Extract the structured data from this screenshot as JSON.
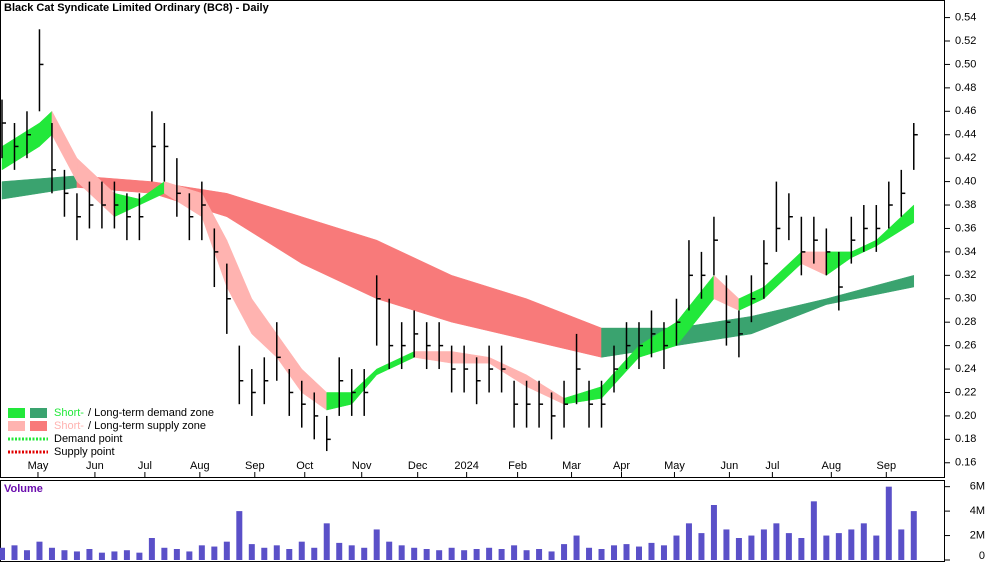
{
  "chart_data": {
    "type": "ohlc",
    "title": "Black Cat Syndicate Limited Ordinary (BC8) - Daily",
    "xlim": [
      -0.16,
      75.5
    ],
    "xticks": [
      {
        "value": 2.88,
        "label": "May"
      },
      {
        "value": 7.44,
        "label": "Jun"
      },
      {
        "value": 11.44,
        "label": "Jul"
      },
      {
        "value": 15.84,
        "label": "Aug"
      },
      {
        "value": 20.24,
        "label": "Sep"
      },
      {
        "value": 24.24,
        "label": "Oct"
      },
      {
        "value": 28.8,
        "label": "Nov"
      },
      {
        "value": 33.28,
        "label": "Dec"
      },
      {
        "value": 37.2,
        "label": "2024"
      },
      {
        "value": 41.28,
        "label": "Feb"
      },
      {
        "value": 45.6,
        "label": "Mar"
      },
      {
        "value": 49.6,
        "label": "Apr"
      },
      {
        "value": 53.84,
        "label": "May"
      },
      {
        "value": 58.24,
        "label": "Jun"
      },
      {
        "value": 61.68,
        "label": "Jul"
      },
      {
        "value": 66.4,
        "label": "Aug"
      },
      {
        "value": 70.8,
        "label": "Sep"
      }
    ],
    "ylim": [
      0.147,
      0.555
    ],
    "yticks": [
      0.16,
      0.18,
      {
        "value": 0.2,
        "label": "0.20"
      },
      0.22,
      0.24,
      0.26,
      0.28,
      {
        "value": 0.3,
        "label": "0.30"
      },
      0.32,
      0.34,
      0.36,
      0.38,
      {
        "value": 0.4,
        "label": "0.40"
      },
      0.42,
      0.44,
      0.46,
      0.48,
      {
        "value": 0.5,
        "label": "0.50"
      },
      0.52,
      0.54
    ],
    "color": "#000000",
    "close": [
      0.45,
      0.43,
      0.44,
      0.5,
      0.41,
      0.39,
      0.37,
      0.38,
      0.38,
      0.38,
      0.37,
      0.37,
      0.43,
      0.43,
      0.39,
      0.37,
      0.38,
      0.34,
      0.3,
      0.23,
      0.22,
      0.23,
      0.25,
      0.22,
      0.21,
      0.2,
      0.18,
      0.23,
      0.22,
      0.22,
      0.3,
      0.26,
      0.26,
      0.27,
      0.26,
      0.26,
      0.24,
      0.24,
      0.23,
      0.24,
      0.24,
      0.21,
      0.21,
      0.21,
      0.2,
      0.21,
      0.24,
      0.21,
      0.21,
      0.24,
      0.26,
      0.26,
      0.27,
      0.26,
      0.28,
      0.32,
      0.32,
      0.35,
      0.28,
      0.27,
      0.3,
      0.33,
      0.36,
      0.37,
      0.34,
      0.35,
      0.34,
      0.31,
      0.35,
      0.36,
      0.36,
      0.38,
      0.39,
      0.44
    ],
    "high": [
      0.47,
      0.45,
      0.46,
      0.53,
      0.45,
      0.41,
      0.39,
      0.4,
      0.4,
      0.4,
      0.39,
      0.39,
      0.46,
      0.45,
      0.42,
      0.39,
      0.4,
      0.36,
      0.33,
      0.26,
      0.24,
      0.25,
      0.28,
      0.24,
      0.23,
      0.22,
      0.2,
      0.25,
      0.24,
      0.24,
      0.32,
      0.3,
      0.28,
      0.29,
      0.28,
      0.28,
      0.26,
      0.26,
      0.25,
      0.26,
      0.26,
      0.23,
      0.23,
      0.23,
      0.22,
      0.23,
      0.27,
      0.23,
      0.23,
      0.26,
      0.28,
      0.28,
      0.29,
      0.28,
      0.3,
      0.35,
      0.34,
      0.37,
      0.32,
      0.29,
      0.32,
      0.35,
      0.4,
      0.39,
      0.37,
      0.37,
      0.36,
      0.34,
      0.37,
      0.38,
      0.38,
      0.4,
      0.41,
      0.45
    ],
    "low": [
      0.42,
      0.41,
      0.42,
      0.46,
      0.39,
      0.37,
      0.35,
      0.36,
      0.36,
      0.36,
      0.35,
      0.35,
      0.4,
      0.4,
      0.37,
      0.35,
      0.35,
      0.31,
      0.27,
      0.21,
      0.2,
      0.21,
      0.23,
      0.2,
      0.19,
      0.18,
      0.17,
      0.2,
      0.2,
      0.2,
      0.26,
      0.24,
      0.24,
      0.25,
      0.24,
      0.24,
      0.22,
      0.22,
      0.21,
      0.22,
      0.22,
      0.19,
      0.19,
      0.19,
      0.18,
      0.19,
      0.21,
      0.19,
      0.19,
      0.22,
      0.24,
      0.24,
      0.25,
      0.24,
      0.26,
      0.29,
      0.3,
      0.32,
      0.26,
      0.25,
      0.28,
      0.3,
      0.34,
      0.35,
      0.32,
      0.33,
      0.32,
      0.29,
      0.33,
      0.34,
      0.34,
      0.36,
      0.37,
      0.41
    ],
    "bands": [
      {
        "name": "Long-term zone",
        "rise_color": "#3aa36f",
        "fall_color": "#f87a7a",
        "x": [
          0,
          6,
          12,
          18,
          24,
          30,
          36,
          42,
          48,
          54,
          60,
          66,
          73
        ],
        "upper": [
          0.4,
          0.405,
          0.4,
          0.39,
          0.37,
          0.35,
          0.32,
          0.3,
          0.275,
          0.275,
          0.285,
          0.3,
          0.32
        ],
        "lower": [
          0.385,
          0.395,
          0.39,
          0.37,
          0.33,
          0.3,
          0.28,
          0.265,
          0.25,
          0.26,
          0.27,
          0.295,
          0.31
        ]
      },
      {
        "name": "Short-term zone",
        "rise_color": "#22e83a",
        "fall_color": "#ffb3b0",
        "x": [
          0,
          3,
          4,
          6,
          9,
          11,
          13,
          16,
          18,
          20,
          22,
          24,
          26,
          28,
          30,
          33,
          36,
          39,
          42,
          45,
          48,
          51,
          54,
          57,
          59,
          61,
          64,
          66,
          68,
          70,
          73
        ],
        "upper": [
          0.43,
          0.45,
          0.46,
          0.42,
          0.39,
          0.385,
          0.4,
          0.39,
          0.35,
          0.3,
          0.27,
          0.24,
          0.22,
          0.22,
          0.24,
          0.255,
          0.255,
          0.25,
          0.235,
          0.215,
          0.225,
          0.26,
          0.28,
          0.32,
          0.3,
          0.31,
          0.34,
          0.34,
          0.34,
          0.35,
          0.38
        ],
        "lower": [
          0.41,
          0.43,
          0.44,
          0.4,
          0.37,
          0.38,
          0.39,
          0.37,
          0.31,
          0.27,
          0.25,
          0.22,
          0.205,
          0.21,
          0.235,
          0.25,
          0.245,
          0.245,
          0.225,
          0.21,
          0.215,
          0.25,
          0.26,
          0.3,
          0.29,
          0.3,
          0.33,
          0.32,
          0.335,
          0.345,
          0.365
        ]
      }
    ],
    "legend": [
      {
        "prefix": "Short-",
        "text": "/ Long-term demand zone",
        "colors": [
          "#22e83a",
          "#3aa36f"
        ]
      },
      {
        "prefix": "Short-",
        "text": "/ Long-term supply zone",
        "colors": [
          "#ffb3b0",
          "#f87a7a"
        ]
      },
      {
        "text": "Demand point",
        "colors": [
          "#22e83a"
        ]
      },
      {
        "text": "Supply point",
        "colors": [
          "#e00000"
        ]
      }
    ],
    "volume": {
      "label": "Volume",
      "color": "#5a50c8",
      "ylim": [
        0,
        6300000
      ],
      "yticks": [
        {
          "value": 6000000,
          "label": "6M"
        },
        {
          "value": 4000000,
          "label": "4M"
        },
        {
          "value": 2000000,
          "label": "2M"
        },
        0
      ],
      "values": [
        1000000,
        1200000,
        800000,
        1500000,
        1000000,
        800000,
        700000,
        900000,
        600000,
        700000,
        800000,
        600000,
        1800000,
        1000000,
        900000,
        700000,
        1200000,
        1100000,
        1500000,
        4000000,
        1300000,
        1000000,
        1200000,
        900000,
        1500000,
        1000000,
        3000000,
        1400000,
        1200000,
        1000000,
        2500000,
        1500000,
        1200000,
        1000000,
        900000,
        800000,
        1000000,
        800000,
        900000,
        1000000,
        900000,
        1200000,
        800000,
        900000,
        700000,
        1300000,
        2000000,
        1000000,
        900000,
        1200000,
        1300000,
        1100000,
        1400000,
        1200000,
        2000000,
        3000000,
        2200000,
        4500000,
        2500000,
        1800000,
        2000000,
        2500000,
        3000000,
        2200000,
        1800000,
        4800000,
        2000000,
        2200000,
        2500000,
        3000000,
        2000000,
        6000000,
        2500000,
        4000000
      ]
    }
  }
}
